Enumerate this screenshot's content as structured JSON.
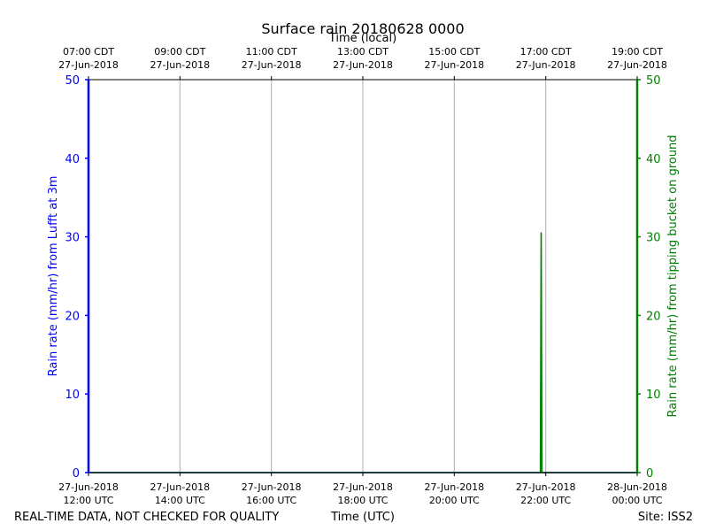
{
  "chart_data": {
    "type": "line",
    "title": "Surface rain 20180628 0000",
    "xlabel": "Time (UTC)",
    "xlabel_top": "Time (local)",
    "ylabel_left": "Rain rate (mm/hr) from Lufft at 3m",
    "ylabel_right": "Rain rate (mm/hr) from tipping bucket on ground",
    "ylim": [
      0,
      50
    ],
    "y_ticks": [
      0,
      10,
      20,
      30,
      40,
      50
    ],
    "xlim": [
      "2018-06-27 12:00 UTC",
      "2018-06-28 00:00 UTC"
    ],
    "x_ticks_bottom": [
      {
        "date": "27-Jun-2018",
        "time": "12:00 UTC"
      },
      {
        "date": "27-Jun-2018",
        "time": "14:00 UTC"
      },
      {
        "date": "27-Jun-2018",
        "time": "16:00 UTC"
      },
      {
        "date": "27-Jun-2018",
        "time": "18:00 UTC"
      },
      {
        "date": "27-Jun-2018",
        "time": "20:00 UTC"
      },
      {
        "date": "27-Jun-2018",
        "time": "22:00 UTC"
      },
      {
        "date": "28-Jun-2018",
        "time": "00:00 UTC"
      }
    ],
    "x_ticks_top": [
      {
        "time": "07:00 CDT",
        "date": "27-Jun-2018"
      },
      {
        "time": "09:00 CDT",
        "date": "27-Jun-2018"
      },
      {
        "time": "11:00 CDT",
        "date": "27-Jun-2018"
      },
      {
        "time": "13:00 CDT",
        "date": "27-Jun-2018"
      },
      {
        "time": "15:00 CDT",
        "date": "27-Jun-2018"
      },
      {
        "time": "17:00 CDT",
        "date": "27-Jun-2018"
      },
      {
        "time": "19:00 CDT",
        "date": "27-Jun-2018"
      }
    ],
    "grid": "vertical",
    "series": [
      {
        "color": "#0000ff",
        "axis": "left",
        "points": [
          {
            "x": "2018-06-27 12:00 UTC",
            "y": 0
          },
          {
            "x": "2018-06-28 00:00 UTC",
            "y": 0
          }
        ]
      },
      {
        "color": "#008000",
        "axis": "right",
        "points": [
          {
            "x": "2018-06-27 12:00 UTC",
            "y": 0
          },
          {
            "x": "2018-06-27 21:53 UTC",
            "y": 0
          },
          {
            "x": "2018-06-27 21:54 UTC",
            "y": 30.5
          },
          {
            "x": "2018-06-27 21:55 UTC",
            "y": 0
          },
          {
            "x": "2018-06-28 00:00 UTC",
            "y": 0
          }
        ]
      }
    ]
  },
  "footer": {
    "quality_note": "REAL-TIME DATA, NOT CHECKED FOR QUALITY",
    "site": "Site: ISS2"
  },
  "colors": {
    "left_axis": "#0000ff",
    "right_axis": "#008000"
  }
}
